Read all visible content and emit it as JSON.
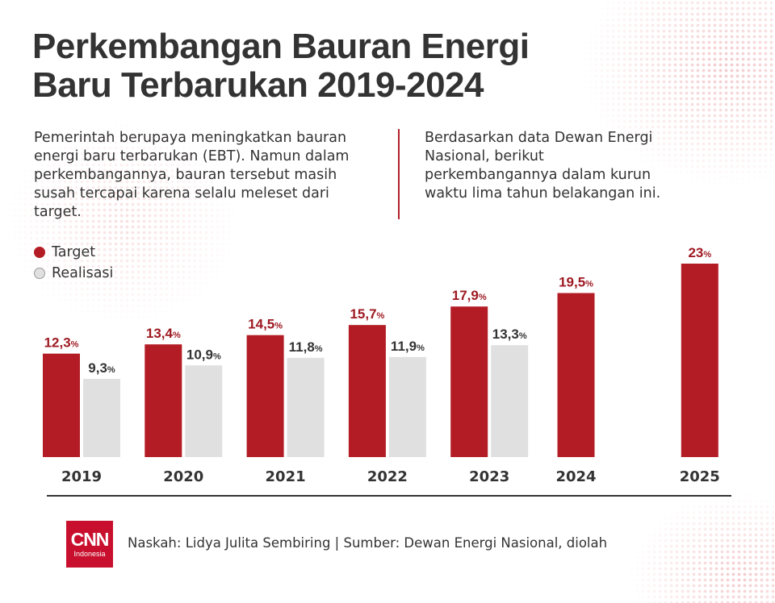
{
  "title_line1": "Perkembangan Bauran Energi",
  "title_line2": "Baru Terbarukan 2019-2024",
  "intro_left": "Pemerintah berupaya meningkatkan bauran energi baru terbarukan (EBT). Namun dalam perkembangannya, bauran tersebut masih susah tercapai karena selalu meleset dari target.",
  "intro_right": "Berdasarkan data Dewan Energi Nasional, berikut perkembangannya dalam kurun waktu lima tahun belakangan ini.",
  "legend": {
    "target": "Target",
    "realisasi": "Realisasi"
  },
  "colors": {
    "target": "#b31c24",
    "realisasi": "#e0e0e0",
    "target_label": "#9e1a22",
    "realisasi_label": "#333333"
  },
  "footer": {
    "credit": "Naskah:  Lidya Julita Sembiring | Sumber: Dewan Energi Nasional, diolah",
    "logo_main": "CNN",
    "logo_sub": "Indonesia"
  },
  "chart_data": {
    "type": "bar",
    "categories": [
      "2019",
      "2020",
      "2021",
      "2022",
      "2023",
      "2024",
      "2025"
    ],
    "unit": "%",
    "series": [
      {
        "name": "Target",
        "values": [
          12.3,
          13.4,
          14.5,
          15.7,
          17.9,
          19.5,
          23
        ],
        "labels": [
          "12,3",
          "13,4",
          "14,5",
          "15,7",
          "17,9",
          "19,5",
          "23"
        ]
      },
      {
        "name": "Realisasi",
        "values": [
          9.3,
          10.9,
          11.8,
          11.9,
          13.3,
          null,
          null
        ],
        "labels": [
          "9,3",
          "10,9",
          "11,8",
          "11,9",
          "13,3",
          null,
          null
        ]
      }
    ],
    "ylim": [
      0,
      23
    ]
  }
}
